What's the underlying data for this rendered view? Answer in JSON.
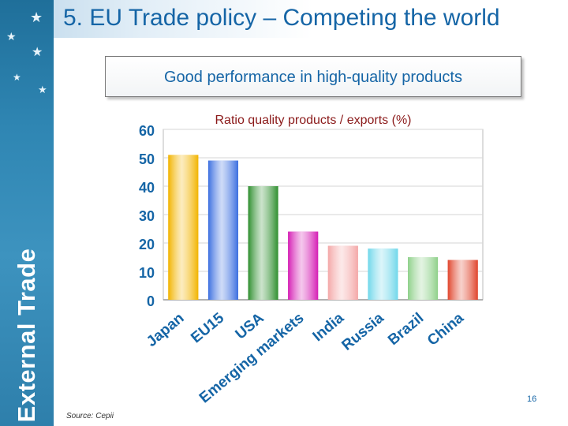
{
  "slide": {
    "title": "5. EU Trade policy – Competing the world",
    "subtitle": "Good performance in high-quality products",
    "sidebar_text": "External Trade",
    "source": "Source: Cepii",
    "page_number": "16",
    "icons": [
      "star-icon"
    ]
  },
  "chart_data": {
    "type": "bar",
    "title": "Ratio quality products / exports (%)",
    "xlabel": "",
    "ylabel": "",
    "categories": [
      "Japan",
      "EU15",
      "USA",
      "Emerging markets",
      "India",
      "Russia",
      "Brazil",
      "China"
    ],
    "values": [
      51,
      49,
      40,
      24,
      19,
      18,
      15,
      14
    ],
    "ylim": [
      0,
      60
    ],
    "yticks": [
      0,
      10,
      20,
      30,
      40,
      50,
      60
    ],
    "grid": true,
    "colors": [
      "#f2b400",
      "#3c6fe0",
      "#2f8f2f",
      "#d51fb5",
      "#f4a8a8",
      "#70d7ea",
      "#8fd18a",
      "#e0452d"
    ],
    "tick_label_color": "#1565a6",
    "title_color": "#8b1a1a"
  }
}
